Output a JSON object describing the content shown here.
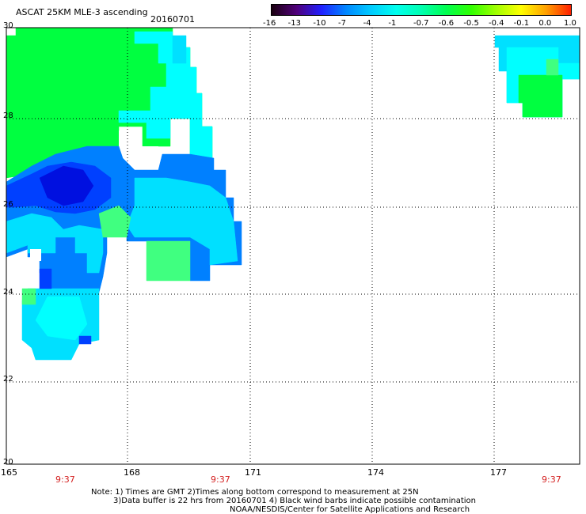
{
  "header": {
    "title": "ASCAT 25KM MLE-3 ascending",
    "date": "20160701"
  },
  "colorbar": {
    "tick_labels": [
      "-16",
      "-13",
      "-10",
      "-7",
      "-4",
      "-1",
      "-0.7",
      "-0.6",
      "-0.5",
      "-0.4",
      "-0.1",
      "0.0",
      "1.0"
    ],
    "colors": [
      "#1a0010",
      "#50007a",
      "#2020ff",
      "#0088ff",
      "#00ccff",
      "#00ffee",
      "#00ffb0",
      "#00ff50",
      "#30ff00",
      "#a0ff00",
      "#ffff00",
      "#ffa000",
      "#ff2000"
    ]
  },
  "map": {
    "x_ticks": [
      "165",
      "168",
      "171",
      "174",
      "177"
    ],
    "y_ticks": [
      "30",
      "28",
      "26",
      "24",
      "22",
      "20"
    ],
    "times": [
      "9:37",
      "9:37",
      "9:37"
    ],
    "colors": {
      "green": "#00ff40",
      "light_green": "#40ff80",
      "cyan": "#00ffff",
      "light_blue": "#00e0ff",
      "medium_blue": "#0080ff",
      "blue": "#0040ff",
      "dark_blue": "#0010e0"
    }
  },
  "notes": {
    "line1": "Note: 1) Times are GMT 2)Times along bottom correspond to measurement at 25N",
    "line2": "3)Data buffer is 22 hrs from 20160701 4) Black wind barbs indicate possible contamination",
    "line3": "NOAA/NESDIS/Center for Satellite Applications and Research"
  }
}
